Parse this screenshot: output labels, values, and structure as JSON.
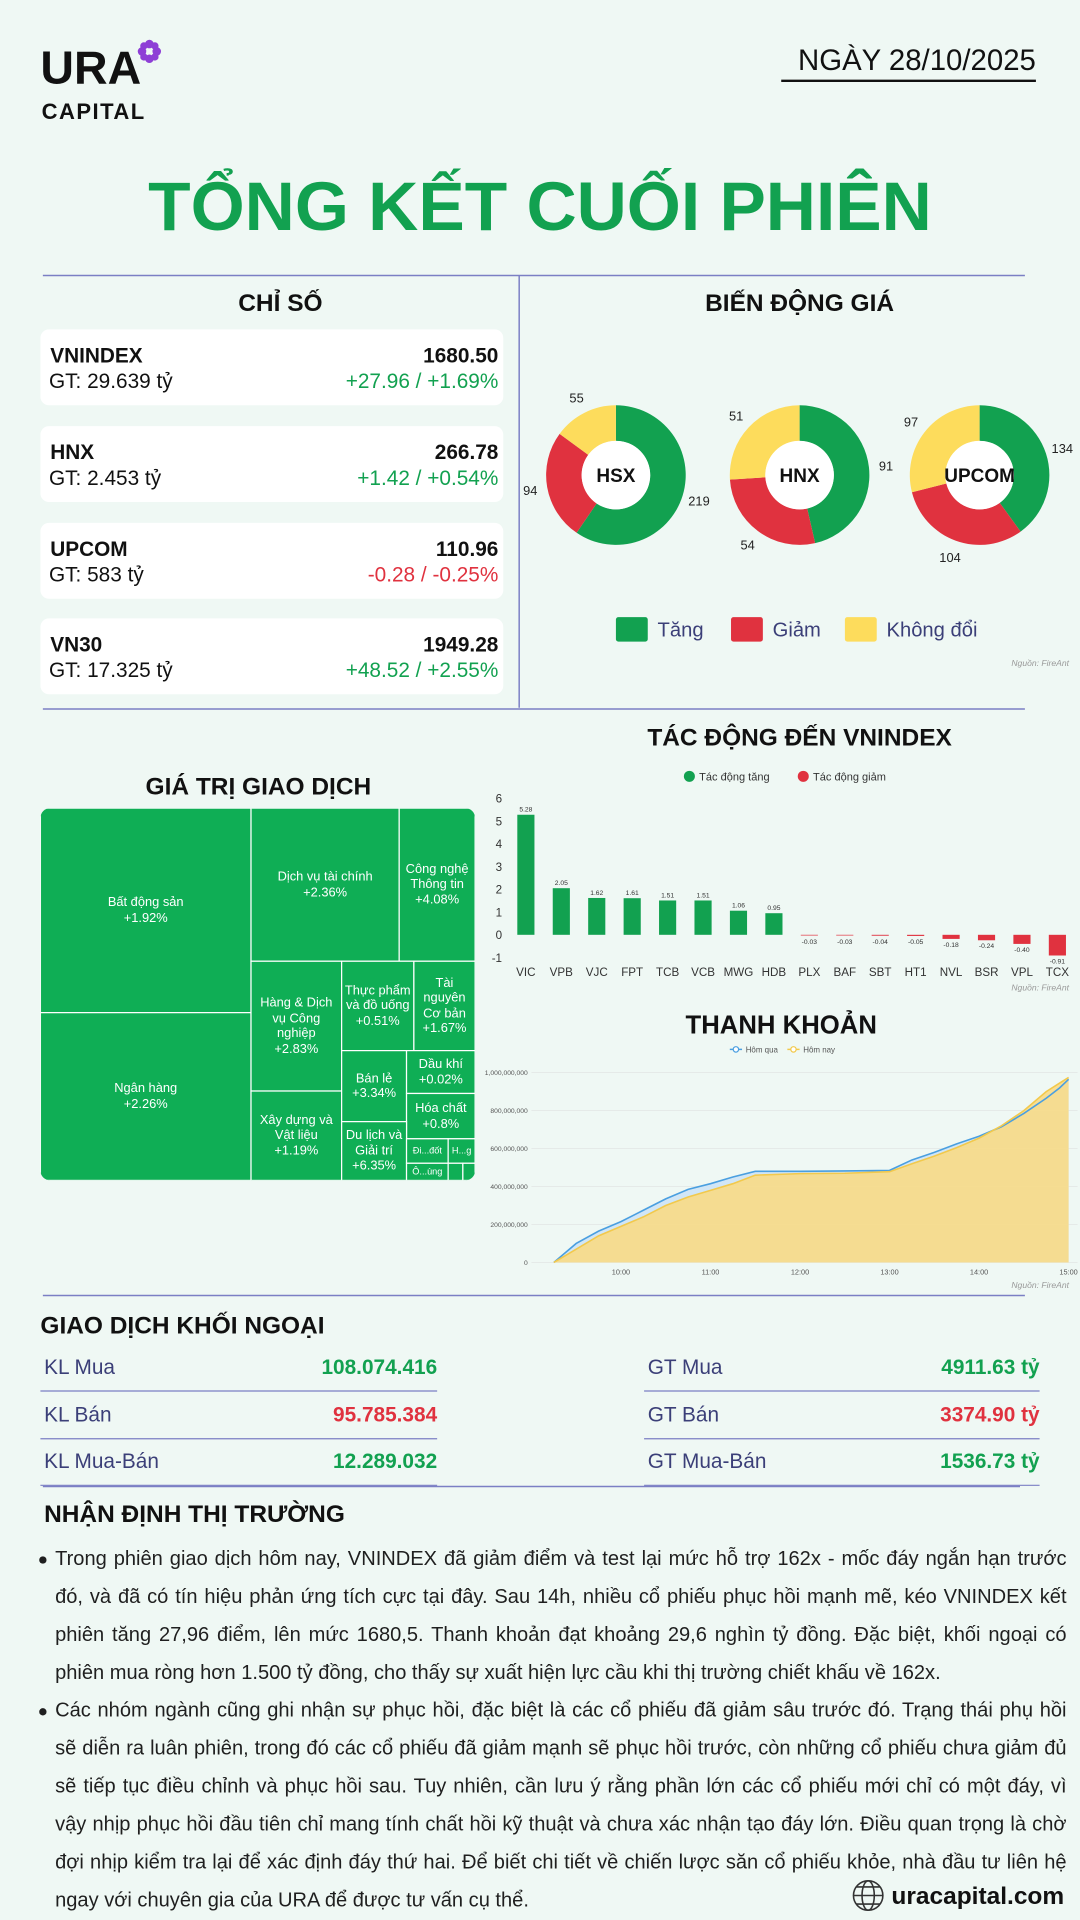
{
  "header": {
    "logo": "URA",
    "logo_subtitle": "CAPITAL",
    "date": "NGÀY 28/10/2025",
    "title": "TỔNG KẾT CUỐI PHIÊN"
  },
  "indices": {
    "title": "CHỈ SỐ",
    "items": [
      {
        "name": "VNINDEX",
        "turnover": "GT: 29.639 tỷ",
        "value": "1680.50",
        "change": "+27.96 / +1.69%",
        "color": "#12a150"
      },
      {
        "name": "HNX",
        "turnover": "GT: 2.453 tỷ",
        "value": "266.78",
        "change": "+1.42 / +0.54%",
        "color": "#12a150"
      },
      {
        "name": "UPCOM",
        "turnover": "GT: 583 tỷ",
        "value": "110.96",
        "change": "-0.28 / -0.25%",
        "color": "#e0323f"
      },
      {
        "name": "VN30",
        "turnover": "GT: 17.325 tỷ",
        "value": "1949.28",
        "change": "+48.52 / +2.55%",
        "color": "#12a150"
      }
    ]
  },
  "trading_value": {
    "title": "GIÁ TRỊ GIAO DỊCH",
    "color": "#0fae55",
    "tiles": [
      {
        "label": "Bất động sản",
        "change": "+1.92%"
      },
      {
        "label": "Ngân hàng",
        "change": "+2.26%"
      },
      {
        "label": "Dịch vụ tài chính",
        "change": "+2.36%"
      },
      {
        "label": "Công nghệ Thông tin",
        "change": "+4.08%"
      },
      {
        "label": "Hàng & Dịch vụ Công nghiệp",
        "change": "+2.83%"
      },
      {
        "label": "Thực phẩm và đồ uống",
        "change": "+0.51%"
      },
      {
        "label": "Tài nguyên Cơ bản",
        "change": "+1.67%"
      },
      {
        "label": "Xây dựng và Vật liệu",
        "change": "+1.19%"
      },
      {
        "label": "Bán lẻ",
        "change": "+3.34%"
      },
      {
        "label": "Dầu khí",
        "change": "+0.02%"
      },
      {
        "label": "Hóa chất",
        "change": "+0.8%"
      },
      {
        "label": "Du lịch và Giải trí",
        "change": "+6.35%"
      },
      {
        "label": "Đi...đốt"
      },
      {
        "label": "H...g"
      },
      {
        "label": "Ô...ùng"
      }
    ]
  },
  "chart_data": [
    {
      "type": "pie",
      "title": "BIẾN ĐỘNG GIÁ",
      "note": "Nguồn: FireAnt",
      "categories": [
        "Tăng",
        "Giảm",
        "Không đổi"
      ],
      "colors": [
        "#12a150",
        "#e0323f",
        "#fddc5c"
      ],
      "series": [
        {
          "name": "HSX",
          "values": [
            219,
            94,
            55
          ]
        },
        {
          "name": "HNX",
          "values": [
            91,
            54,
            51
          ]
        },
        {
          "name": "UPCOM",
          "values": [
            134,
            104,
            97
          ]
        }
      ]
    },
    {
      "type": "bar",
      "title": "TÁC ĐỘNG ĐẾN VNINDEX",
      "note": "Nguồn: FireAnt",
      "categories": [
        "VIC",
        "VPB",
        "VJC",
        "FPT",
        "TCB",
        "VCB",
        "MWG",
        "HDB",
        "PLX",
        "BAF",
        "SBT",
        "HT1",
        "NVL",
        "BSR",
        "VPL",
        "TCX"
      ],
      "series": [
        {
          "name": "Tác động tăng",
          "color": "#12a150",
          "values": [
            5.28,
            2.05,
            1.62,
            1.61,
            1.51,
            1.51,
            1.06,
            0.95,
            null,
            null,
            null,
            null,
            null,
            null,
            null,
            null
          ],
          "value_labels": [
            "5.28",
            "2.05",
            "1.62",
            "1.61",
            "1.51",
            "1.51",
            "1.06",
            "0.95",
            null,
            null,
            null,
            null,
            null,
            null,
            null,
            null
          ]
        },
        {
          "name": "Tác động giảm",
          "color": "#e0323f",
          "values": [
            null,
            null,
            null,
            null,
            null,
            null,
            null,
            null,
            -0.03,
            -0.03,
            -0.04,
            -0.05,
            -0.18,
            -0.24,
            -0.4,
            -0.91
          ],
          "value_labels": [
            null,
            null,
            null,
            null,
            null,
            null,
            null,
            null,
            "-0.03",
            "-0.03",
            "-0.04",
            "-0.05",
            "-0.18",
            "-0.24",
            "-0.40",
            "-0.91"
          ]
        }
      ],
      "ylim": [
        -1,
        6
      ],
      "yticks": [
        -1,
        0,
        1,
        2,
        3,
        4,
        5,
        6
      ],
      "grid": false
    },
    {
      "type": "area",
      "title": "THANH KHOẢN",
      "note": "Nguồn: FireAnt",
      "x": [
        9.25,
        9.5,
        9.75,
        10,
        10.25,
        10.5,
        10.75,
        11,
        11.25,
        11.5,
        12,
        12.5,
        13,
        13.25,
        13.5,
        13.75,
        14,
        14.25,
        14.5,
        14.75,
        14.9,
        15
      ],
      "series": [
        {
          "name": "Hôm qua",
          "color": "#4a9fe0",
          "fill": "#cfe5f5",
          "values": [
            0,
            100000000,
            165000000,
            215000000,
            275000000,
            335000000,
            385000000,
            415000000,
            450000000,
            480000000,
            480000000,
            482000000,
            485000000,
            540000000,
            580000000,
            625000000,
            665000000,
            715000000,
            785000000,
            865000000,
            920000000,
            965000000
          ]
        },
        {
          "name": "Hôm nay",
          "color": "#f2c94c",
          "fill": "#f8dc8c",
          "values": [
            0,
            70000000,
            140000000,
            190000000,
            240000000,
            300000000,
            345000000,
            380000000,
            415000000,
            460000000,
            468000000,
            470000000,
            478000000,
            520000000,
            560000000,
            605000000,
            655000000,
            720000000,
            800000000,
            900000000,
            945000000,
            975000000
          ]
        }
      ],
      "xlim": [
        9,
        15.1
      ],
      "xticks": [
        {
          "value": 10,
          "label": "10:00"
        },
        {
          "value": 11,
          "label": "11:00"
        },
        {
          "value": 12,
          "label": "12:00"
        },
        {
          "value": 13,
          "label": "13:00"
        },
        {
          "value": 14,
          "label": "14:00"
        },
        {
          "value": 15,
          "label": "15:00"
        }
      ],
      "ylim": [
        0,
        1000000000
      ],
      "yticks": [
        0,
        {
          "value": 200000000,
          "label": "200,000,000"
        },
        {
          "value": 400000000,
          "label": "400,000,000"
        },
        {
          "value": 600000000,
          "label": "600,000,000"
        },
        {
          "value": 800000000,
          "label": "800,000,000"
        },
        {
          "value": 1000000000,
          "label": "1,000,000,000"
        }
      ],
      "grid": true
    }
  ],
  "foreign_trading": {
    "title": "GIAO DỊCH KHỐI NGOẠI",
    "rows": [
      [
        {
          "label": "KL Mua",
          "value": "108.074.416",
          "color": "#12a150"
        },
        {
          "label": "GT Mua",
          "value": "4911.63 tỷ",
          "color": "#12a150"
        }
      ],
      [
        {
          "label": "KL Bán",
          "value": "95.785.384",
          "color": "#e0323f"
        },
        {
          "label": "GT Bán",
          "value": "3374.90 tỷ",
          "color": "#e0323f"
        }
      ],
      [
        {
          "label": "KL Mua-Bán",
          "value": "12.289.032",
          "color": "#12a150"
        },
        {
          "label": "GT Mua-Bán",
          "value": "1536.73 tỷ",
          "color": "#12a150"
        }
      ]
    ]
  },
  "market_outlook": {
    "title": "NHẬN ĐỊNH THỊ TRƯỜNG",
    "bullets": [
      "Trong phiên giao dịch hôm nay, VNINDEX đã giảm điểm và test lại mức hỗ trợ 162x - mốc đáy ngắn hạn trước đó, và đã có tín hiệu phản ứng tích cực tại đây. Sau 14h, nhiều cổ phiếu phục hồi mạnh mẽ, kéo VNINDEX kết phiên tăng 27,96 điểm, lên mức 1680,5. Thanh khoản đạt khoảng 29,6 nghìn tỷ đồng. Đặc biệt, khối ngoại có phiên mua ròng hơn 1.500 tỷ đồng, cho thấy sự xuất hiện lực cầu khi thị trường chiết khấu về 162x.",
      "Các nhóm ngành cũng ghi nhận sự phục hồi, đặc biệt là các cổ phiếu đã giảm sâu trước đó. Trạng thái phụ hồi sẽ diễn ra luân phiên, trong đó các cổ phiếu đã giảm mạnh sẽ phục hồi trước, còn những cổ phiếu chưa giảm đủ sẽ tiếp tục điều chỉnh và phục hồi sau. Tuy nhiên, cần lưu ý rằng phần lớn các cổ phiếu mới chỉ có một đáy, vì vậy nhịp phục hồi đầu tiên chỉ mang tính chất hồi kỹ thuật và chưa xác nhận tạo đáy lớn. Điều quan trọng là chờ đợi nhịp kiểm tra lại để xác định đáy thứ hai. Để biết chi tiết về chiến lược săn cổ phiếu khỏe, nhà đầu tư liên hệ ngay với chuyên gia của URA để được tư vấn cụ thể."
    ]
  },
  "footer": {
    "website": "uracapital.com"
  }
}
